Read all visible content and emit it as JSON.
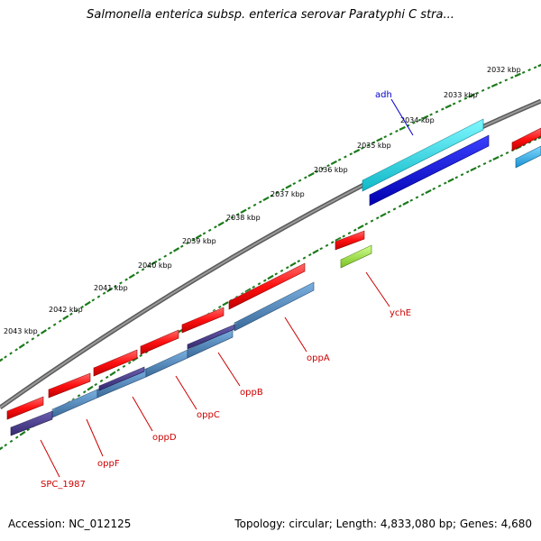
{
  "title": "Salmonella enterica subsp. enterica serovar Paratyphi C stra...",
  "footer": {
    "accession": "Accession: NC_012125",
    "summary": "Topology: circular; Length: 4,833,080 bp; Genes: 4,680"
  },
  "colors": {
    "backbone": "#7a7a7a",
    "ticks": "#1a7a1a",
    "forward_gene": "#ff1a1a",
    "reverse_gene": "#4a7fb5",
    "reverse_gene_alt": "#4b3f8f",
    "adh_top": "#22e0e8",
    "adh_bottom": "#0a12d8",
    "right_cyan": "#22b0e8",
    "ychE_green": "#99e33a",
    "label_red": "#cc0000",
    "label_blue": "#0000cc"
  },
  "kbp_labels": [
    "2032 kbp",
    "2033 kbp",
    "2034 kbp",
    "2035 kbp",
    "2036 kbp",
    "2037 kbp",
    "2038 kbp",
    "2039 kbp",
    "2040 kbp",
    "2041 kbp",
    "2042 kbp",
    "2043 kbp"
  ],
  "gene_labels": [
    {
      "name": "adh",
      "color": "blue"
    },
    {
      "name": "ychE",
      "color": "red"
    },
    {
      "name": "oppA",
      "color": "red"
    },
    {
      "name": "oppB",
      "color": "red"
    },
    {
      "name": "oppC",
      "color": "red"
    },
    {
      "name": "oppD",
      "color": "red"
    },
    {
      "name": "oppF",
      "color": "red"
    },
    {
      "name": "SPC_1987",
      "color": "red"
    }
  ]
}
